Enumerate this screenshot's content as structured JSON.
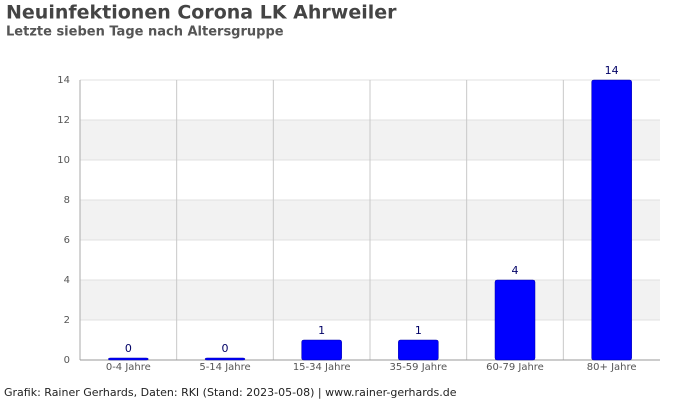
{
  "chart_data": {
    "type": "bar",
    "title": "Neuinfektionen Corona LK Ahrweiler",
    "subtitle": "Letzte sieben Tage nach Altersgruppe",
    "categories": [
      "0-4 Jahre",
      "5-14 Jahre",
      "15-34 Jahre",
      "35-59 Jahre",
      "60-79 Jahre",
      "80+ Jahre"
    ],
    "values": [
      0,
      0,
      1,
      1,
      4,
      14
    ],
    "color": "#0000ff",
    "ylim": [
      0,
      14
    ],
    "yticks": [
      0,
      2,
      4,
      6,
      8,
      10,
      12,
      14
    ],
    "grid": true,
    "source": "Grafik: Rainer Gerhards, Daten: RKI (Stand: 2023-05-08) | www.rainer-gerhards.de"
  }
}
